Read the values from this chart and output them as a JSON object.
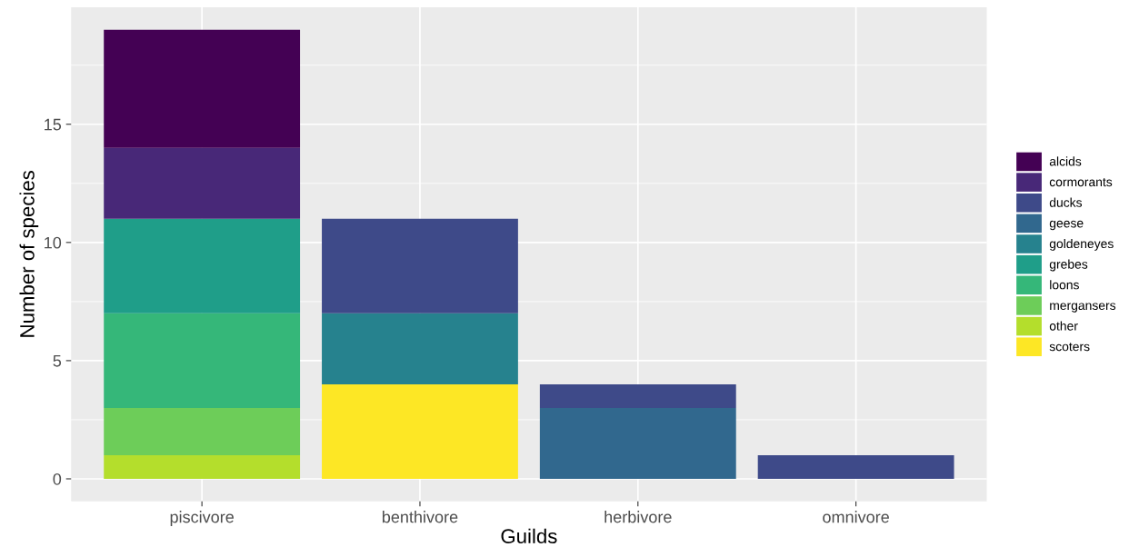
{
  "chart_data": {
    "type": "bar",
    "stacked": true,
    "xlabel": "Guilds",
    "ylabel": "Number of species",
    "categories": [
      "piscivore",
      "benthivore",
      "herbivore",
      "omnivore"
    ],
    "series": [
      {
        "name": "scoters",
        "color": "#fde725",
        "values": [
          0,
          4,
          0,
          0
        ]
      },
      {
        "name": "other",
        "color": "#b4de2c",
        "values": [
          1,
          0,
          0,
          0
        ]
      },
      {
        "name": "mergansers",
        "color": "#6dcd59",
        "values": [
          2,
          0,
          0,
          0
        ]
      },
      {
        "name": "loons",
        "color": "#35b779",
        "values": [
          4,
          0,
          0,
          0
        ]
      },
      {
        "name": "grebes",
        "color": "#1f9e89",
        "values": [
          4,
          0,
          0,
          0
        ]
      },
      {
        "name": "goldeneyes",
        "color": "#26828e",
        "values": [
          0,
          3,
          0,
          0
        ]
      },
      {
        "name": "geese",
        "color": "#31688e",
        "values": [
          0,
          0,
          3,
          0
        ]
      },
      {
        "name": "ducks",
        "color": "#3e4a89",
        "values": [
          0,
          4,
          1,
          1
        ]
      },
      {
        "name": "cormorants",
        "color": "#482878",
        "values": [
          3,
          0,
          0,
          0
        ]
      },
      {
        "name": "alcids",
        "color": "#440154",
        "values": [
          5,
          0,
          0,
          0
        ]
      }
    ],
    "ylim": [
      -0.95,
      19.95
    ],
    "yticks": [
      0,
      5,
      10,
      15
    ],
    "grid": true,
    "legend": "right"
  }
}
